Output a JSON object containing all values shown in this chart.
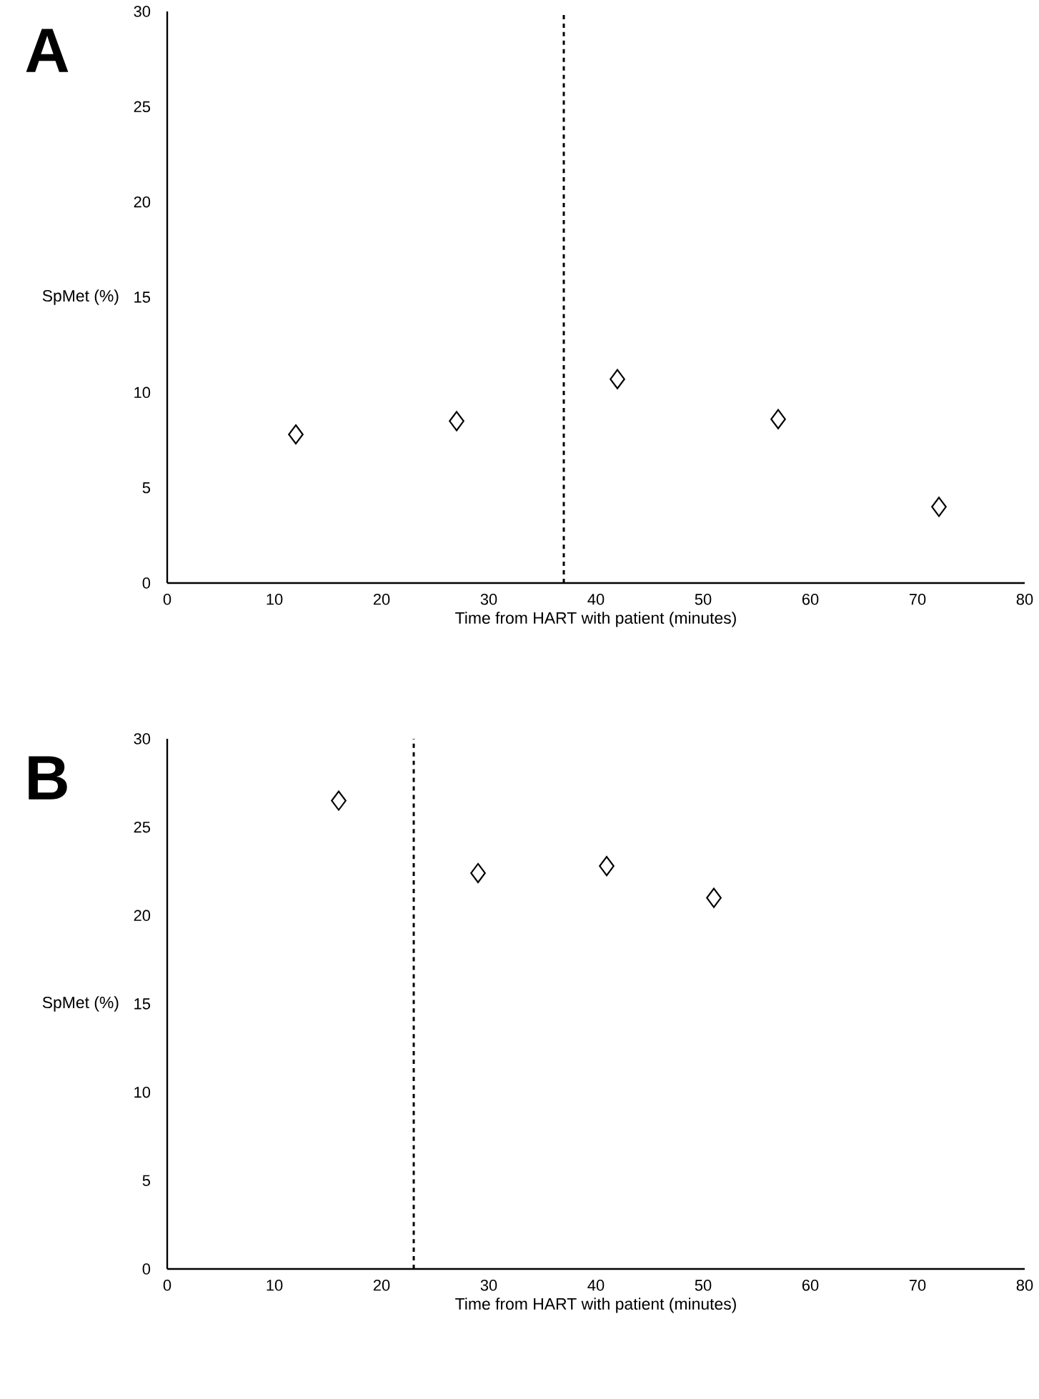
{
  "chart_data": [
    {
      "type": "scatter",
      "xlabel": "Time from HART with patient (minutes)",
      "ylabel": "SpMet (%)",
      "annotations": [
        "A"
      ],
      "xlim": [
        0,
        80
      ],
      "xticks": [
        0,
        10,
        20,
        30,
        40,
        50,
        60,
        70,
        80
      ],
      "ylim": [
        0,
        30
      ],
      "yticks": [
        0,
        5,
        10,
        15,
        20,
        25,
        30
      ],
      "marker": "diamond",
      "series": [
        {
          "color": "#000000",
          "x": [
            12,
            27,
            42,
            57,
            72
          ],
          "values": [
            7.8,
            8.5,
            10.7,
            8.6,
            4.0
          ]
        }
      ],
      "ref_lines": [
        {
          "axis": "x",
          "value": 37,
          "color": "#000000",
          "line_style": "dashed"
        }
      ]
    },
    {
      "type": "scatter",
      "xlabel": "Time from HART with patient (minutes)",
      "ylabel": "SpMet (%)",
      "annotations": [
        "B"
      ],
      "xlim": [
        0,
        80
      ],
      "xticks": [
        0,
        10,
        20,
        30,
        40,
        50,
        60,
        70,
        80
      ],
      "ylim": [
        0,
        30
      ],
      "yticks": [
        0,
        5,
        10,
        15,
        20,
        25,
        30
      ],
      "marker": "diamond",
      "series": [
        {
          "color": "#000000",
          "x": [
            16,
            29,
            41,
            51
          ],
          "values": [
            26.5,
            22.4,
            22.8,
            21.0
          ]
        }
      ],
      "ref_lines": [
        {
          "axis": "x",
          "value": 23,
          "color": "#000000",
          "line_style": "dashed"
        }
      ]
    }
  ]
}
